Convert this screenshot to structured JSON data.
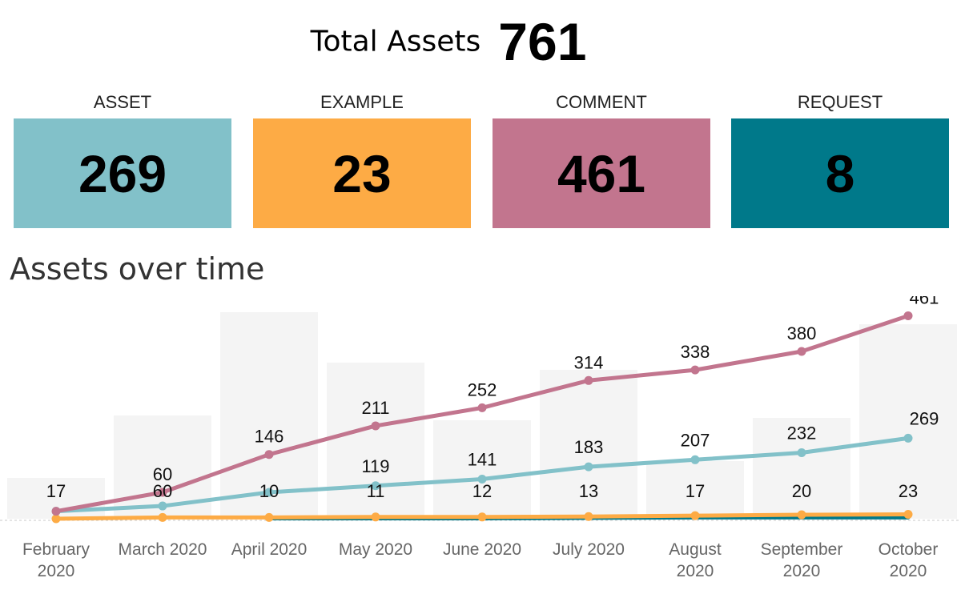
{
  "header": {
    "title": "Total Assets",
    "total": "761"
  },
  "kpis": [
    {
      "label": "ASSET",
      "value": "269",
      "color": "#82c1c9"
    },
    {
      "label": "EXAMPLE",
      "value": "23",
      "color": "#fdab45"
    },
    {
      "label": "COMMENT",
      "value": "461",
      "color": "#c2758e"
    },
    {
      "label": "REQUEST",
      "value": "8",
      "color": "#00798a"
    }
  ],
  "section_title": "Assets over time",
  "chart_data": {
    "type": "line",
    "categories": [
      [
        "February",
        "2020"
      ],
      [
        "March 2020"
      ],
      [
        "April 2020"
      ],
      [
        "May 2020"
      ],
      [
        "June 2020"
      ],
      [
        "July 2020"
      ],
      [
        "August",
        "2020"
      ],
      [
        "September",
        "2020"
      ],
      [
        "October",
        "2020"
      ]
    ],
    "background_bars": [
      17,
      43,
      86,
      65,
      41,
      62,
      24,
      42,
      81
    ],
    "series": [
      {
        "values": [
          17,
          60,
          146,
          211,
          252,
          314,
          338,
          380,
          461
        ],
        "color": "#c2758e",
        "labels": true
      },
      {
        "values": [
          17,
          29,
          60,
          75,
          90,
          118,
          134,
          150,
          183
        ],
        "color": "#82c1c9",
        "label_values": [
          null,
          null,
          null,
          119,
          141,
          183,
          207,
          232,
          269
        ]
      },
      {
        "values": [
          0,
          3,
          3,
          4,
          4,
          5,
          7,
          9,
          10
        ],
        "color": "#fdab45",
        "label_values": [
          17,
          60,
          10,
          11,
          12,
          13,
          17,
          20,
          23
        ]
      },
      {
        "values": [
          null,
          null,
          1,
          1,
          1,
          2,
          3,
          3,
          3
        ],
        "color": "#00798a"
      }
    ],
    "bar_color": "#f4f4f4",
    "grid": false
  }
}
